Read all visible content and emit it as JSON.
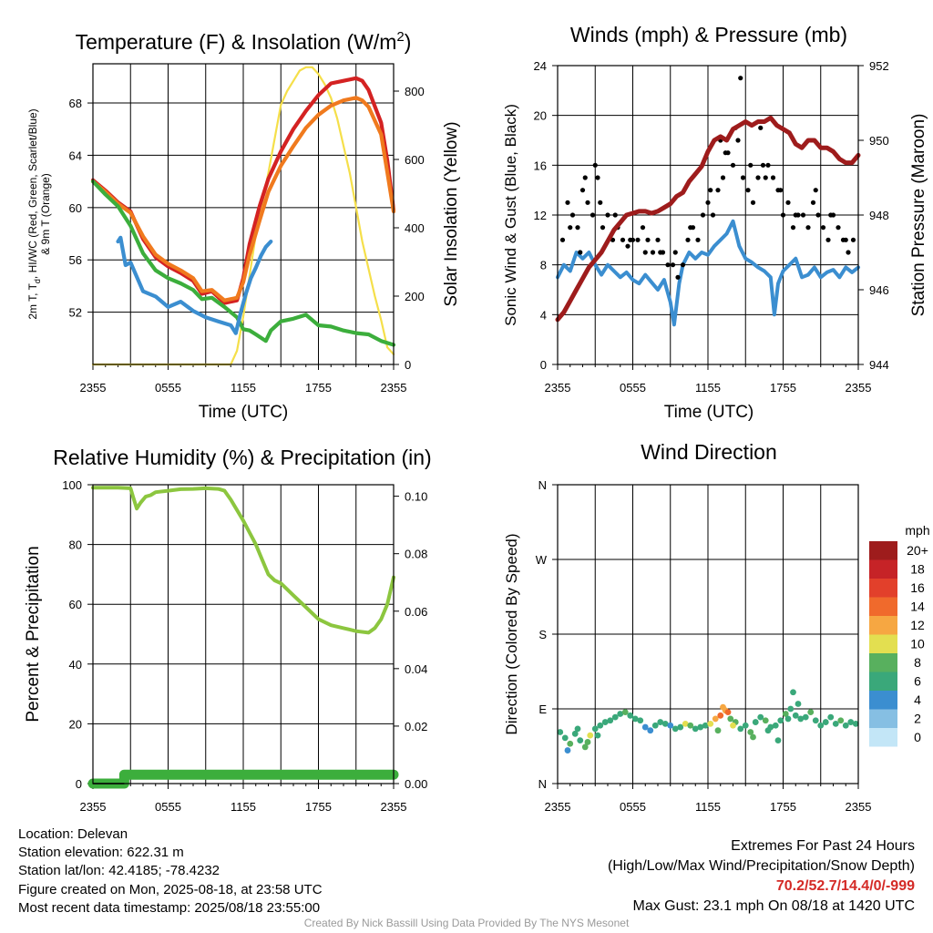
{
  "chart_data": [
    {
      "type": "line",
      "title": "Temperature (F) & Insolation (W/m²)",
      "title_main": "Temperature (F) & Insolation (W/m",
      "title_sup": "2",
      "title_end": ")",
      "xlabel": "Time (UTC)",
      "ylabel": "2m T, Td, HI/WC (Red, Green, Scarlet/Blue) & 9m T (Orange)",
      "ylabel_line1": "2m T, T",
      "ylabel_sub": "d",
      "ylabel_line1_end": ", HI/WC (Red, Green, Scarlet/Blue)",
      "ylabel_line2": "& 9m T (Orange)",
      "y2label": "Solar Insolation (Yellow)",
      "x_ticks": [
        "2355",
        "0555",
        "1155",
        "1755",
        "2355"
      ],
      "x_range_hours": [
        0,
        24
      ],
      "y_ticks": [
        "52",
        "56",
        "60",
        "64",
        "68"
      ],
      "ylim": [
        48,
        71
      ],
      "y2_ticks": [
        "0",
        "200",
        "400",
        "600",
        "800"
      ],
      "y2lim": [
        0,
        880
      ],
      "grid": true,
      "series": [
        {
          "color": "#d42222",
          "x": [
            0,
            1,
            2,
            3,
            4,
            5,
            6,
            7,
            8,
            8.7,
            9.5,
            10.5,
            11.5,
            12,
            12.5,
            13.3,
            14,
            15,
            16,
            17,
            18,
            19,
            20,
            21,
            21.5,
            22,
            23,
            23.5,
            24
          ],
          "values": [
            62.1,
            61.3,
            60.4,
            59.7,
            57.6,
            56.2,
            55.5,
            55.0,
            54.4,
            53.4,
            53.6,
            52.7,
            52.9,
            54.6,
            57.2,
            60.1,
            62.2,
            64.3,
            66.0,
            67.4,
            68.6,
            69.5,
            69.7,
            69.9,
            69.7,
            69.0,
            66.5,
            63.6,
            59.8
          ]
        },
        {
          "color": "#f07a1e",
          "x": [
            0,
            1,
            2,
            3,
            4,
            5,
            6,
            7,
            8,
            8.7,
            9.5,
            10.5,
            11.5,
            12,
            12.5,
            13.3,
            14,
            15,
            16,
            17,
            18,
            19,
            20,
            21,
            21.5,
            22,
            23,
            23.5,
            24
          ],
          "values": [
            62.0,
            61.2,
            60.3,
            59.6,
            57.8,
            56.4,
            55.7,
            55.2,
            54.6,
            53.6,
            53.7,
            52.9,
            53.1,
            54.3,
            56.4,
            59.0,
            61.2,
            63.2,
            64.7,
            66.1,
            67.1,
            67.8,
            68.2,
            68.4,
            68.2,
            67.7,
            65.6,
            62.7,
            59.7
          ]
        },
        {
          "color": "#3cae3c",
          "x": [
            0,
            1,
            2,
            3,
            4,
            5,
            6,
            7,
            8,
            8.7,
            9.5,
            10.5,
            11,
            11.5,
            12,
            12.5,
            13,
            13.8,
            14.2,
            15,
            16,
            17,
            18,
            19,
            20,
            21,
            22,
            23,
            24
          ],
          "values": [
            62.0,
            61.0,
            60.1,
            58.6,
            56.5,
            55.2,
            54.6,
            54.2,
            53.7,
            53.0,
            53.1,
            52.4,
            52.0,
            51.6,
            50.7,
            50.6,
            50.3,
            49.8,
            50.6,
            51.3,
            51.5,
            51.8,
            51.0,
            50.9,
            50.6,
            50.4,
            50.3,
            49.8,
            49.5
          ]
        },
        {
          "color": "#3b8ed0",
          "x": [
            2.0,
            2.2,
            2.6,
            3,
            4,
            5,
            6,
            7,
            8,
            9,
            10,
            11,
            11.4
          ],
          "values": [
            57.4,
            57.7,
            55.6,
            55.8,
            53.6,
            53.2,
            52.4,
            52.8,
            52.1,
            51.6,
            51.3,
            51.0,
            50.4
          ]
        },
        {
          "color": "#3b8ed0",
          "x": [
            11.4,
            11.8,
            12.2,
            12.6,
            13,
            13.4,
            13.8,
            14.2
          ],
          "values": [
            50.4,
            52.0,
            53.4,
            54.6,
            55.4,
            56.3,
            57.0,
            57.4
          ]
        }
      ],
      "insolation_series": {
        "color": "#f5df4a",
        "x": [
          0,
          11.0,
          11.5,
          12,
          12.5,
          13,
          13.5,
          14,
          14.5,
          15,
          15.5,
          16,
          16.5,
          17,
          17.5,
          18,
          18.5,
          19,
          19.5,
          20,
          20.5,
          21,
          21.5,
          22,
          22.5,
          23,
          23.5,
          24
        ],
        "values": [
          0,
          0,
          40,
          140,
          260,
          380,
          470,
          560,
          660,
          760,
          800,
          830,
          860,
          870,
          870,
          850,
          820,
          780,
          720,
          640,
          560,
          460,
          360,
          280,
          200,
          130,
          50,
          30
        ]
      }
    },
    {
      "type": "line",
      "title": "Winds (mph) & Pressure (mb)",
      "xlabel": "Time (UTC)",
      "ylabel": "Sonic Wind & Gust (Blue, Black)",
      "y2label": "Station Pressure (Maroon)",
      "x_ticks": [
        "2355",
        "0555",
        "1155",
        "1755",
        "2355"
      ],
      "x_range_hours": [
        0,
        24
      ],
      "y_ticks": [
        "0",
        "4",
        "8",
        "12",
        "16",
        "20",
        "24"
      ],
      "ylim": [
        0,
        24
      ],
      "y2_ticks": [
        "944",
        "946",
        "948",
        "950",
        "952"
      ],
      "y2lim": [
        944,
        952
      ],
      "grid": true,
      "wind_series": {
        "color": "#3b8ed0",
        "x": [
          0,
          0.5,
          1,
          1.5,
          2,
          2.5,
          3,
          3.5,
          4,
          4.5,
          5,
          5.5,
          6,
          6.5,
          7,
          7.5,
          8,
          8.5,
          9,
          9.3,
          9.7,
          10,
          10.5,
          11,
          11.5,
          12,
          12.5,
          13,
          13.5,
          14,
          14.5,
          15,
          15.5,
          16,
          16.5,
          17,
          17.3,
          17.6,
          18,
          18.5,
          19,
          19.5,
          20,
          20.5,
          21,
          21.5,
          22,
          22.5,
          23,
          23.5,
          24
        ],
        "values": [
          7,
          8,
          7.5,
          9,
          8.5,
          9,
          8,
          7.2,
          8,
          7.5,
          7,
          7.4,
          6.8,
          6.5,
          7.2,
          6.6,
          6,
          6.8,
          5,
          3.2,
          6.5,
          8,
          9,
          8.5,
          9,
          8.8,
          9.5,
          10,
          10.5,
          11.5,
          9.5,
          8.5,
          8.2,
          7.8,
          7.5,
          7,
          4,
          6.5,
          7.5,
          8,
          8.5,
          7,
          7.2,
          7.8,
          7,
          7.4,
          7.6,
          7,
          7.8,
          7.4,
          7.8
        ]
      },
      "gust_points_x": [
        0.4,
        0.8,
        1.2,
        1.6,
        2.0,
        2.4,
        2.8,
        3.2,
        3.6,
        4.0,
        4.4,
        4.8,
        5.2,
        5.6,
        6.0,
        6.4,
        6.8,
        7.2,
        7.6,
        8.0,
        8.4,
        8.8,
        9.2,
        9.6,
        10.0,
        10.4,
        10.8,
        11.2,
        11.6,
        12.0,
        12.4,
        12.8,
        13.2,
        13.6,
        14.0,
        14.4,
        14.8,
        15.2,
        15.6,
        16.0,
        16.4,
        16.8,
        17.2,
        17.6,
        18.0,
        18.4,
        18.8,
        19.2,
        19.6,
        20.0,
        20.4,
        20.8,
        21.2,
        21.6,
        22.0,
        22.4,
        22.8,
        23.2,
        23.6,
        1.0,
        2.2,
        3.0,
        4.6,
        5.8,
        7.0,
        8.2,
        9.4,
        10.6,
        12.2,
        13.4,
        14.2,
        15.4,
        16.6,
        17.8,
        19.0,
        20.6,
        21.8,
        23.0,
        1.8,
        3.4,
        13.0,
        14.6,
        16.2
      ],
      "gust_points_y": [
        10,
        13,
        12,
        11,
        14,
        13,
        12,
        15,
        11,
        12,
        10,
        11,
        10,
        9.5,
        10,
        10,
        11,
        10,
        9,
        10,
        9,
        8,
        8,
        7,
        8,
        10,
        11,
        10,
        12,
        13,
        12,
        14,
        15,
        17,
        16,
        18,
        15,
        14,
        13,
        15,
        16,
        16,
        15,
        14,
        12,
        13,
        11,
        12,
        12,
        11,
        13,
        12,
        11,
        10,
        12,
        11,
        10,
        9,
        10,
        11,
        15,
        16,
        12,
        10,
        9,
        9,
        9,
        11,
        14,
        17,
        19,
        16,
        15,
        14,
        12,
        14,
        12,
        10,
        9,
        13,
        18,
        23,
        19,
        17
      ],
      "pressure_series": {
        "color": "#9e1c1c",
        "x": [
          0,
          0.5,
          1,
          1.5,
          2,
          2.5,
          3,
          3.5,
          4,
          4.5,
          5,
          5.5,
          6,
          6.5,
          7,
          7.5,
          8,
          8.5,
          9,
          9.5,
          10,
          10.5,
          11,
          11.5,
          12,
          12.5,
          13,
          13.5,
          14,
          14.5,
          15,
          15.5,
          16,
          16.5,
          17,
          17.5,
          18,
          18.5,
          19,
          19.5,
          20,
          20.5,
          21,
          21.5,
          22,
          22.5,
          23,
          23.5,
          24
        ],
        "values": [
          945.2,
          945.4,
          945.7,
          946.0,
          946.3,
          946.6,
          946.8,
          947.0,
          947.3,
          947.6,
          947.8,
          948.0,
          948.05,
          948.1,
          948.1,
          948.05,
          948.1,
          948.2,
          948.3,
          948.5,
          948.6,
          948.9,
          949.1,
          949.3,
          949.7,
          950.0,
          950.1,
          950.0,
          950.3,
          950.4,
          950.5,
          950.4,
          950.5,
          950.5,
          950.6,
          950.4,
          950.3,
          950.2,
          949.9,
          949.8,
          950.0,
          950.0,
          949.8,
          949.8,
          949.7,
          949.5,
          949.4,
          949.4,
          949.6
        ]
      }
    },
    {
      "type": "line",
      "title": "Relative Humidity (%) & Precipitation (in)",
      "xlabel": "",
      "ylabel": "Percent & Precipitation",
      "x_ticks": [
        "2355",
        "0555",
        "1155",
        "1755",
        "2355"
      ],
      "x_range_hours": [
        0,
        24
      ],
      "y_ticks": [
        "0",
        "20",
        "40",
        "60",
        "80",
        "100"
      ],
      "ylim": [
        0,
        100
      ],
      "y2_ticks": [
        "0.00",
        "0.02",
        "0.04",
        "0.06",
        "0.08",
        "0.10"
      ],
      "y2lim": [
        0,
        0.104
      ],
      "grid": true,
      "rh_series": {
        "color": "#8cc63f",
        "x": [
          0,
          1,
          2,
          3,
          3.2,
          3.5,
          3.8,
          4.2,
          4.6,
          5,
          6,
          7,
          8,
          9,
          10,
          10.5,
          11,
          12,
          12.5,
          13,
          13.5,
          14,
          14.5,
          15,
          16,
          17,
          18,
          19,
          20,
          21,
          22,
          22.5,
          23,
          23.5,
          24
        ],
        "values": [
          99,
          99,
          99,
          98.8,
          96,
          92,
          94,
          96,
          96.5,
          97.5,
          98,
          98.5,
          98.6,
          98.8,
          98.6,
          98,
          95,
          88,
          84,
          80,
          75,
          70,
          68,
          67,
          63,
          59,
          55,
          53,
          52,
          51,
          50.5,
          52,
          55,
          60,
          69
        ]
      },
      "precip_series": {
        "color": "#3cae3c",
        "x": [
          0,
          2.5,
          2.5,
          24
        ],
        "values": [
          0,
          0,
          3,
          3
        ]
      }
    },
    {
      "type": "scatter",
      "title": "Wind Direction",
      "xlabel": "",
      "ylabel": "Direction (Colored By Speed)",
      "x_ticks": [
        "2355",
        "0555",
        "1155",
        "1755",
        "2355"
      ],
      "x_range_hours": [
        0,
        24
      ],
      "y_ticks": [
        "N",
        "E",
        "S",
        "W",
        "N"
      ],
      "ylim": [
        0,
        360
      ],
      "grid": true,
      "legend": {
        "title": "mph",
        "position": "right",
        "labels": [
          "0",
          "2",
          "4",
          "6",
          "8",
          "10",
          "12",
          "14",
          "16",
          "18",
          "20+"
        ],
        "colors": [
          "#c3e6f7",
          "#86bfe3",
          "#3b8ed0",
          "#3aa87a",
          "#58b05e",
          "#e3df50",
          "#f6a742",
          "#f06a2c",
          "#e2402b",
          "#c62327",
          "#9e1c1c"
        ]
      },
      "points_x": [
        0.2,
        0.6,
        1.0,
        1.4,
        1.8,
        2.2,
        2.6,
        3.0,
        3.4,
        3.8,
        4.2,
        4.6,
        5.0,
        5.4,
        5.8,
        6.2,
        6.6,
        7.0,
        7.4,
        7.8,
        8.2,
        8.6,
        9.0,
        9.4,
        9.8,
        10.2,
        10.6,
        11.0,
        11.4,
        11.8,
        12.2,
        12.6,
        13.0,
        13.4,
        13.8,
        14.2,
        14.6,
        15.0,
        15.4,
        15.8,
        16.2,
        16.6,
        17.0,
        17.4,
        17.8,
        18.2,
        18.6,
        19.0,
        19.4,
        19.8,
        20.2,
        20.6,
        21.0,
        21.4,
        21.8,
        22.2,
        22.6,
        23.0,
        23.4,
        23.8,
        0.8,
        1.6,
        2.4,
        3.2,
        13.2,
        13.6,
        14.0,
        15.6,
        16.8,
        17.6,
        18.4,
        19.2,
        18.8,
        12.8
      ],
      "points_y": [
        62,
        55,
        48,
        60,
        52,
        44,
        58,
        66,
        70,
        74,
        76,
        80,
        84,
        86,
        82,
        78,
        76,
        68,
        64,
        70,
        74,
        72,
        70,
        66,
        68,
        72,
        70,
        66,
        68,
        70,
        72,
        78,
        82,
        88,
        78,
        74,
        66,
        70,
        62,
        74,
        80,
        76,
        68,
        70,
        76,
        84,
        90,
        82,
        78,
        80,
        86,
        76,
        70,
        74,
        80,
        72,
        76,
        70,
        74,
        72,
        40,
        66,
        50,
        58,
        92,
        86,
        70,
        56,
        64,
        52,
        78,
        96,
        110,
        64
      ],
      "points_speed": [
        6,
        7,
        8,
        6,
        7,
        8,
        10,
        6,
        7,
        6,
        7,
        6,
        7,
        8,
        6,
        7,
        6,
        5,
        4,
        6,
        7,
        6,
        5,
        6,
        7,
        10,
        8,
        7,
        6,
        7,
        10,
        12,
        14,
        12,
        9,
        8,
        7,
        6,
        8,
        7,
        6,
        8,
        7,
        6,
        7,
        8,
        6,
        7,
        6,
        7,
        8,
        6,
        7,
        6,
        7,
        6,
        8,
        6,
        7,
        6,
        5,
        7,
        9,
        6,
        12,
        14,
        10,
        8,
        6,
        7,
        6,
        6,
        6,
        9
      ]
    }
  ],
  "info": {
    "location": "Location: Delevan",
    "elevation": "Station elevation: 622.31 m",
    "latlon": "Station lat/lon: 42.4185; -78.4232",
    "created": "Figure created on Mon, 2025-08-18, at 23:58 UTC",
    "recent": "Most recent data timestamp: 2025/08/18 23:55:00"
  },
  "extremes": {
    "title": "Extremes For Past 24 Hours",
    "subtitle": "(High/Low/Max Wind/Precipitation/Snow Depth)",
    "values": "70.2/52.7/14.4/0/-999",
    "gust": "Max Gust: 23.1 mph On 08/18 at 1420 UTC"
  },
  "credit": "Created By Nick Bassill Using Data Provided By The NYS Mesonet"
}
